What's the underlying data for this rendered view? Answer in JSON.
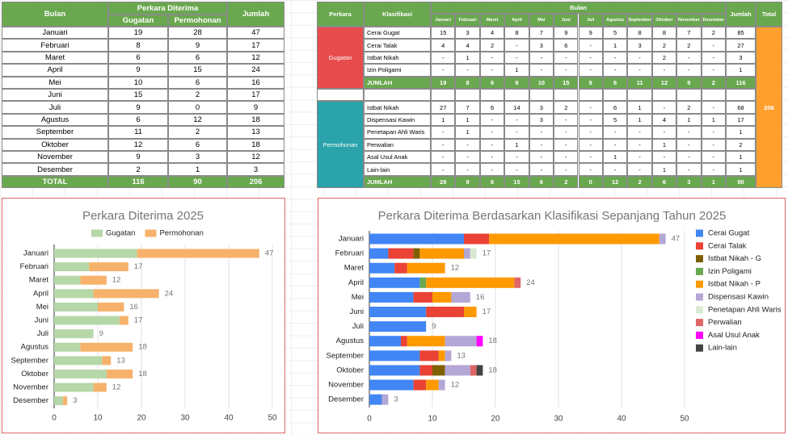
{
  "table1": {
    "header": {
      "bulan": "Bulan",
      "group": "Perkara Diterima",
      "cols": [
        "Gugatan",
        "Permohonan"
      ],
      "jumlah": "Jumlah"
    },
    "rows": [
      [
        "Januari",
        19,
        28,
        47
      ],
      [
        "Februari",
        8,
        9,
        17
      ],
      [
        "Maret",
        6,
        6,
        12
      ],
      [
        "April",
        9,
        15,
        24
      ],
      [
        "Mei",
        10,
        6,
        16
      ],
      [
        "Juni",
        15,
        2,
        17
      ],
      [
        "Juli",
        9,
        0,
        9
      ],
      [
        "Agustus",
        6,
        12,
        18
      ],
      [
        "September",
        11,
        2,
        13
      ],
      [
        "Oktober",
        12,
        6,
        18
      ],
      [
        "November",
        9,
        3,
        12
      ],
      [
        "Desember",
        2,
        1,
        3
      ]
    ],
    "total": [
      "TOTAL",
      116,
      90,
      206
    ]
  },
  "table2": {
    "header": {
      "perkara": "Perkara",
      "klasifikasi": "Klasifikasi",
      "bulan": "Bulan",
      "jumlah": "Jumlah",
      "total": "Total",
      "months": [
        "Januari",
        "Februari",
        "Maret",
        "April",
        "Mei",
        "Juni",
        "Juli",
        "Agustus",
        "September",
        "Oktober",
        "November",
        "Desember"
      ]
    },
    "groups": [
      {
        "name": "Gugatan",
        "color": "#e84c4c",
        "rows": [
          [
            "Cerai Gugat",
            15,
            3,
            4,
            8,
            7,
            9,
            9,
            5,
            8,
            8,
            7,
            2,
            85
          ],
          [
            "Cerai Talak",
            4,
            4,
            2,
            "-",
            3,
            6,
            "-",
            1,
            3,
            2,
            2,
            "-",
            27
          ],
          [
            "Istbat Nikah",
            "-",
            1,
            "-",
            "-",
            "-",
            "-",
            "-",
            "-",
            "-",
            2,
            "-",
            "-",
            3
          ],
          [
            "Izin Poligami",
            "-",
            "-",
            "-",
            1,
            "-",
            "-",
            "-",
            "-",
            "-",
            "-",
            "-",
            "-",
            1
          ]
        ],
        "summary": [
          "JUMLAH",
          19,
          8,
          6,
          9,
          10,
          15,
          9,
          6,
          11,
          12,
          9,
          2,
          116
        ]
      },
      {
        "name": "Permohonan",
        "color": "#2aa3aa",
        "rows": [
          [
            "Istbat Nikah",
            27,
            7,
            6,
            14,
            3,
            2,
            "-",
            6,
            1,
            "-",
            2,
            "-",
            68
          ],
          [
            "Dispensasi Kawin",
            1,
            1,
            "-",
            "-",
            3,
            "-",
            "-",
            5,
            1,
            4,
            1,
            1,
            17
          ],
          [
            "Penetapan Ahli Waris",
            "-",
            1,
            "-",
            "-",
            "-",
            "-",
            "-",
            "-",
            "-",
            "-",
            "-",
            "-",
            1
          ],
          [
            "Perwalian",
            "-",
            "-",
            "-",
            1,
            "-",
            "-",
            "-",
            "-",
            "-",
            1,
            "-",
            "-",
            2
          ],
          [
            "Asal Usul Anak",
            "-",
            "-",
            "-",
            "-",
            "-",
            "-",
            "-",
            1,
            "-",
            "-",
            "-",
            "-",
            1
          ],
          [
            "Lain-lain",
            "-",
            "-",
            "-",
            "-",
            "-",
            "-",
            "-",
            "-",
            "-",
            1,
            "-",
            "-",
            1
          ]
        ],
        "summary": [
          "JUMLAH",
          28,
          9,
          6,
          15,
          6,
          2,
          0,
          12,
          2,
          6,
          3,
          1,
          90
        ]
      }
    ],
    "total": 206
  },
  "chart_data": [
    {
      "type": "bar",
      "orientation": "horizontal",
      "stacked": true,
      "title": "Perkara Diterima 2025",
      "categories": [
        "Januari",
        "Februari",
        "Maret",
        "April",
        "Mei",
        "Juni",
        "Juli",
        "Agustus",
        "September",
        "Oktober",
        "November",
        "Desember"
      ],
      "series": [
        {
          "name": "Gugatan",
          "color": "#b6d7a8",
          "values": [
            19,
            8,
            6,
            9,
            10,
            15,
            9,
            6,
            11,
            12,
            9,
            2
          ]
        },
        {
          "name": "Permohonan",
          "color": "#f6b26b",
          "values": [
            28,
            9,
            6,
            15,
            6,
            2,
            0,
            12,
            2,
            6,
            3,
            1
          ]
        }
      ],
      "totals": [
        47,
        17,
        12,
        24,
        16,
        17,
        9,
        18,
        13,
        18,
        12,
        3
      ],
      "xlim": [
        0,
        50
      ],
      "xticks": [
        0,
        10,
        20,
        30,
        40,
        50
      ],
      "grid": true,
      "legend": "top"
    },
    {
      "type": "bar",
      "orientation": "horizontal",
      "stacked": true,
      "title": "Perkara Diterima Berdasarkan Klasifikasi Sepanjang Tahun 2025",
      "categories": [
        "Januari",
        "Februari",
        "Maret",
        "April",
        "Mei",
        "Juni",
        "Juli",
        "Agustus",
        "September",
        "Oktober",
        "November",
        "Desember"
      ],
      "series": [
        {
          "name": "Cerai Gugat",
          "color": "#4285f4",
          "values": [
            15,
            3,
            4,
            8,
            7,
            9,
            9,
            5,
            8,
            8,
            7,
            2
          ]
        },
        {
          "name": "Cerai Talak",
          "color": "#ea4335",
          "values": [
            4,
            4,
            2,
            0,
            3,
            6,
            0,
            1,
            3,
            2,
            2,
            0
          ]
        },
        {
          "name": "Istbat Nikah - G",
          "color": "#7f6000",
          "values": [
            0,
            1,
            0,
            0,
            0,
            0,
            0,
            0,
            0,
            2,
            0,
            0
          ]
        },
        {
          "name": "Izin Poligami",
          "color": "#6aa84f",
          "values": [
            0,
            0,
            0,
            1,
            0,
            0,
            0,
            0,
            0,
            0,
            0,
            0
          ]
        },
        {
          "name": "Istbat Nikah - P",
          "color": "#ff9900",
          "values": [
            27,
            7,
            6,
            14,
            3,
            2,
            0,
            6,
            1,
            0,
            2,
            0
          ]
        },
        {
          "name": "Dispensasi Kawin",
          "color": "#b4a7d6",
          "values": [
            1,
            1,
            0,
            0,
            3,
            0,
            0,
            5,
            1,
            4,
            1,
            1
          ]
        },
        {
          "name": "Penetapan Ahli Waris",
          "color": "#d9ead3",
          "values": [
            0,
            1,
            0,
            0,
            0,
            0,
            0,
            0,
            0,
            0,
            0,
            0
          ]
        },
        {
          "name": "Perwalian",
          "color": "#e06666",
          "values": [
            0,
            0,
            0,
            1,
            0,
            0,
            0,
            0,
            0,
            1,
            0,
            0
          ]
        },
        {
          "name": "Asal Usul Anak",
          "color": "#ff00ff",
          "values": [
            0,
            0,
            0,
            0,
            0,
            0,
            0,
            1,
            0,
            0,
            0,
            0
          ]
        },
        {
          "name": "Lain-lain",
          "color": "#434343",
          "values": [
            0,
            0,
            0,
            0,
            0,
            0,
            0,
            0,
            0,
            1,
            0,
            0
          ]
        }
      ],
      "totals": [
        47,
        17,
        12,
        24,
        16,
        17,
        9,
        18,
        13,
        18,
        12,
        3
      ],
      "xlim": [
        0,
        50
      ],
      "xticks": [
        0,
        10,
        20,
        30,
        40,
        50
      ],
      "grid": true,
      "legend": "right"
    }
  ]
}
